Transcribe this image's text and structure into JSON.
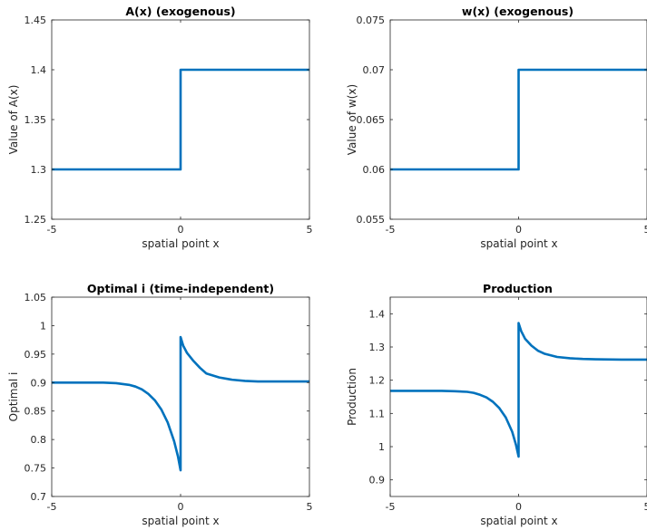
{
  "colors": {
    "line": "#0072BD",
    "axis": "#262626",
    "background": "#ffffff"
  },
  "chart_data": [
    {
      "type": "line",
      "title": "A(x) (exogenous)",
      "xlabel": "spatial point x",
      "ylabel": "Value of A(x)",
      "xlim": [
        -5,
        5
      ],
      "ylim": [
        1.25,
        1.45
      ],
      "xticks": [
        -5,
        0,
        5
      ],
      "xtick_labels": [
        "-5",
        "0",
        "5"
      ],
      "yticks": [
        1.25,
        1.3,
        1.35,
        1.4,
        1.45
      ],
      "ytick_labels": [
        "1.25",
        "1.3",
        "1.35",
        "1.4",
        "1.45"
      ],
      "grid": false,
      "series": [
        {
          "x": [
            -5,
            0,
            0,
            5
          ],
          "y": [
            1.3,
            1.3,
            1.4,
            1.4
          ]
        }
      ]
    },
    {
      "type": "line",
      "title": "w(x) (exogenous)",
      "xlabel": "spatial point x",
      "ylabel": "Value of w(x)",
      "xlim": [
        -5,
        5
      ],
      "ylim": [
        0.055,
        0.075
      ],
      "xticks": [
        -5,
        0,
        5
      ],
      "xtick_labels": [
        "-5",
        "0",
        "5"
      ],
      "yticks": [
        0.055,
        0.06,
        0.065,
        0.07,
        0.075
      ],
      "ytick_labels": [
        "0.055",
        "0.06",
        "0.065",
        "0.07",
        "0.075"
      ],
      "grid": false,
      "series": [
        {
          "x": [
            -5,
            0,
            0,
            5
          ],
          "y": [
            0.06,
            0.06,
            0.07,
            0.07
          ]
        }
      ]
    },
    {
      "type": "line",
      "title": "Optimal i (time-independent)",
      "xlabel": "spatial point x",
      "ylabel": "Optimal i",
      "xlim": [
        -5,
        5
      ],
      "ylim": [
        0.7,
        1.05
      ],
      "xticks": [
        -5,
        0,
        5
      ],
      "xtick_labels": [
        "-5",
        "0",
        "5"
      ],
      "yticks": [
        0.7,
        0.75,
        0.8,
        0.85,
        0.9,
        0.95,
        1.0,
        1.05
      ],
      "ytick_labels": [
        "0.7",
        "0.75",
        "0.8",
        "0.85",
        "0.9",
        "0.95",
        "1",
        "1.05"
      ],
      "grid": false,
      "series": [
        {
          "x": [
            -5,
            -4,
            -3,
            -2.5,
            -2,
            -1.75,
            -1.5,
            -1.25,
            -1,
            -0.75,
            -0.5,
            -0.25,
            -0.1,
            0,
            0,
            0.1,
            0.25,
            0.5,
            0.75,
            1,
            1.5,
            2,
            2.5,
            3,
            4,
            5
          ],
          "y": [
            0.9,
            0.9,
            0.9,
            0.899,
            0.896,
            0.893,
            0.888,
            0.88,
            0.869,
            0.853,
            0.83,
            0.797,
            0.77,
            0.746,
            0.98,
            0.965,
            0.952,
            0.938,
            0.926,
            0.916,
            0.909,
            0.905,
            0.903,
            0.902,
            0.902,
            0.902
          ]
        }
      ]
    },
    {
      "type": "line",
      "title": "Production",
      "xlabel": "spatial point x",
      "ylabel": "Production",
      "xlim": [
        -5,
        5
      ],
      "ylim": [
        0.85,
        1.45
      ],
      "xticks": [
        -5,
        0,
        5
      ],
      "xtick_labels": [
        "-5",
        "0",
        "5"
      ],
      "yticks": [
        0.9,
        1.0,
        1.1,
        1.2,
        1.3,
        1.4
      ],
      "ytick_labels": [
        "0.9",
        "1",
        "1.1",
        "1.2",
        "1.3",
        "1.4"
      ],
      "grid": false,
      "series": [
        {
          "x": [
            -5,
            -4,
            -3,
            -2.5,
            -2,
            -1.75,
            -1.5,
            -1.25,
            -1,
            -0.75,
            -0.5,
            -0.25,
            -0.1,
            0,
            0,
            0.1,
            0.25,
            0.5,
            0.75,
            1,
            1.5,
            2,
            2.5,
            3,
            4,
            5
          ],
          "y": [
            1.168,
            1.168,
            1.168,
            1.167,
            1.165,
            1.162,
            1.156,
            1.148,
            1.135,
            1.116,
            1.088,
            1.045,
            1.005,
            0.97,
            1.372,
            1.348,
            1.325,
            1.304,
            1.289,
            1.28,
            1.27,
            1.266,
            1.264,
            1.263,
            1.262,
            1.262
          ]
        }
      ]
    }
  ]
}
